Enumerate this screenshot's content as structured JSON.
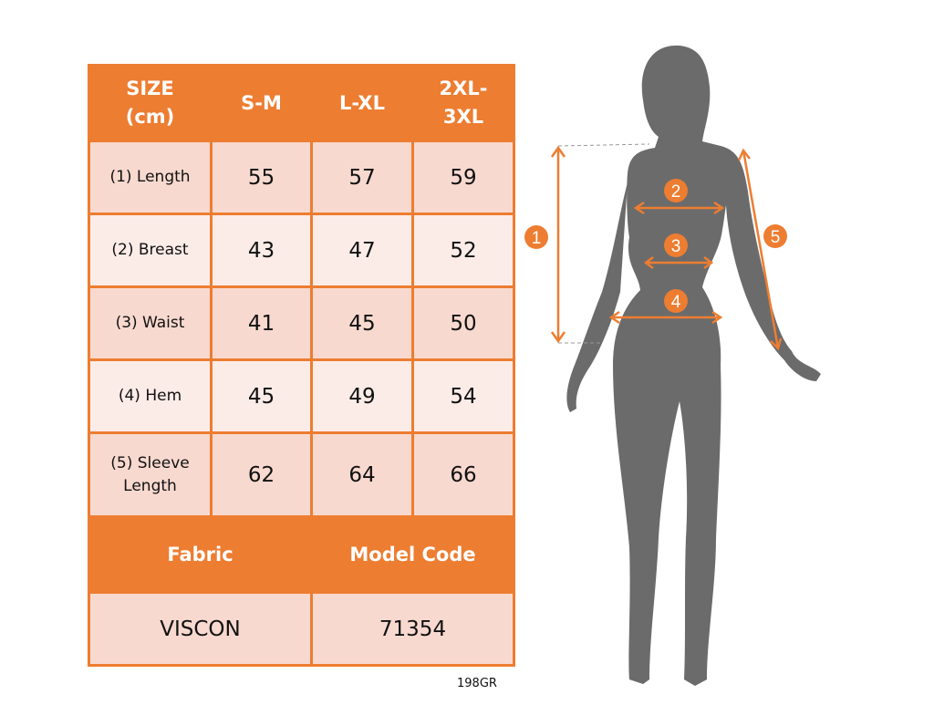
{
  "table": {
    "header": [
      "SIZE (cm)",
      "S-M",
      "L-XL",
      "2XL-3XL"
    ],
    "header_lines": [
      [
        "SIZE",
        "(cm)"
      ],
      [
        "S-M"
      ],
      [
        "L-XL"
      ],
      [
        "2XL-",
        "3XL"
      ]
    ],
    "rows": [
      {
        "label": "(1) Length",
        "values": [
          "55",
          "57",
          "59"
        ]
      },
      {
        "label": "(2) Breast",
        "values": [
          "43",
          "47",
          "52"
        ]
      },
      {
        "label": "(3) Waist",
        "values": [
          "41",
          "45",
          "50"
        ]
      },
      {
        "label": "(4) Hem",
        "values": [
          "45",
          "49",
          "54"
        ]
      },
      {
        "label_lines": [
          "(5) Sleeve",
          "Length"
        ],
        "label": "(5) Sleeve Length",
        "values": [
          "62",
          "64",
          "66"
        ]
      }
    ],
    "info_header": [
      "Fabric",
      "Model Code"
    ],
    "info_values": [
      "VISCON",
      "71354"
    ]
  },
  "footer_code": "198GR",
  "figure": {
    "markers": [
      "1",
      "2",
      "3",
      "4",
      "5"
    ]
  },
  "colors": {
    "accent": "#ED7D31",
    "row_dark": "#F8D9CF",
    "row_light": "#FBECE8",
    "silhouette": "#6B6B6B"
  }
}
